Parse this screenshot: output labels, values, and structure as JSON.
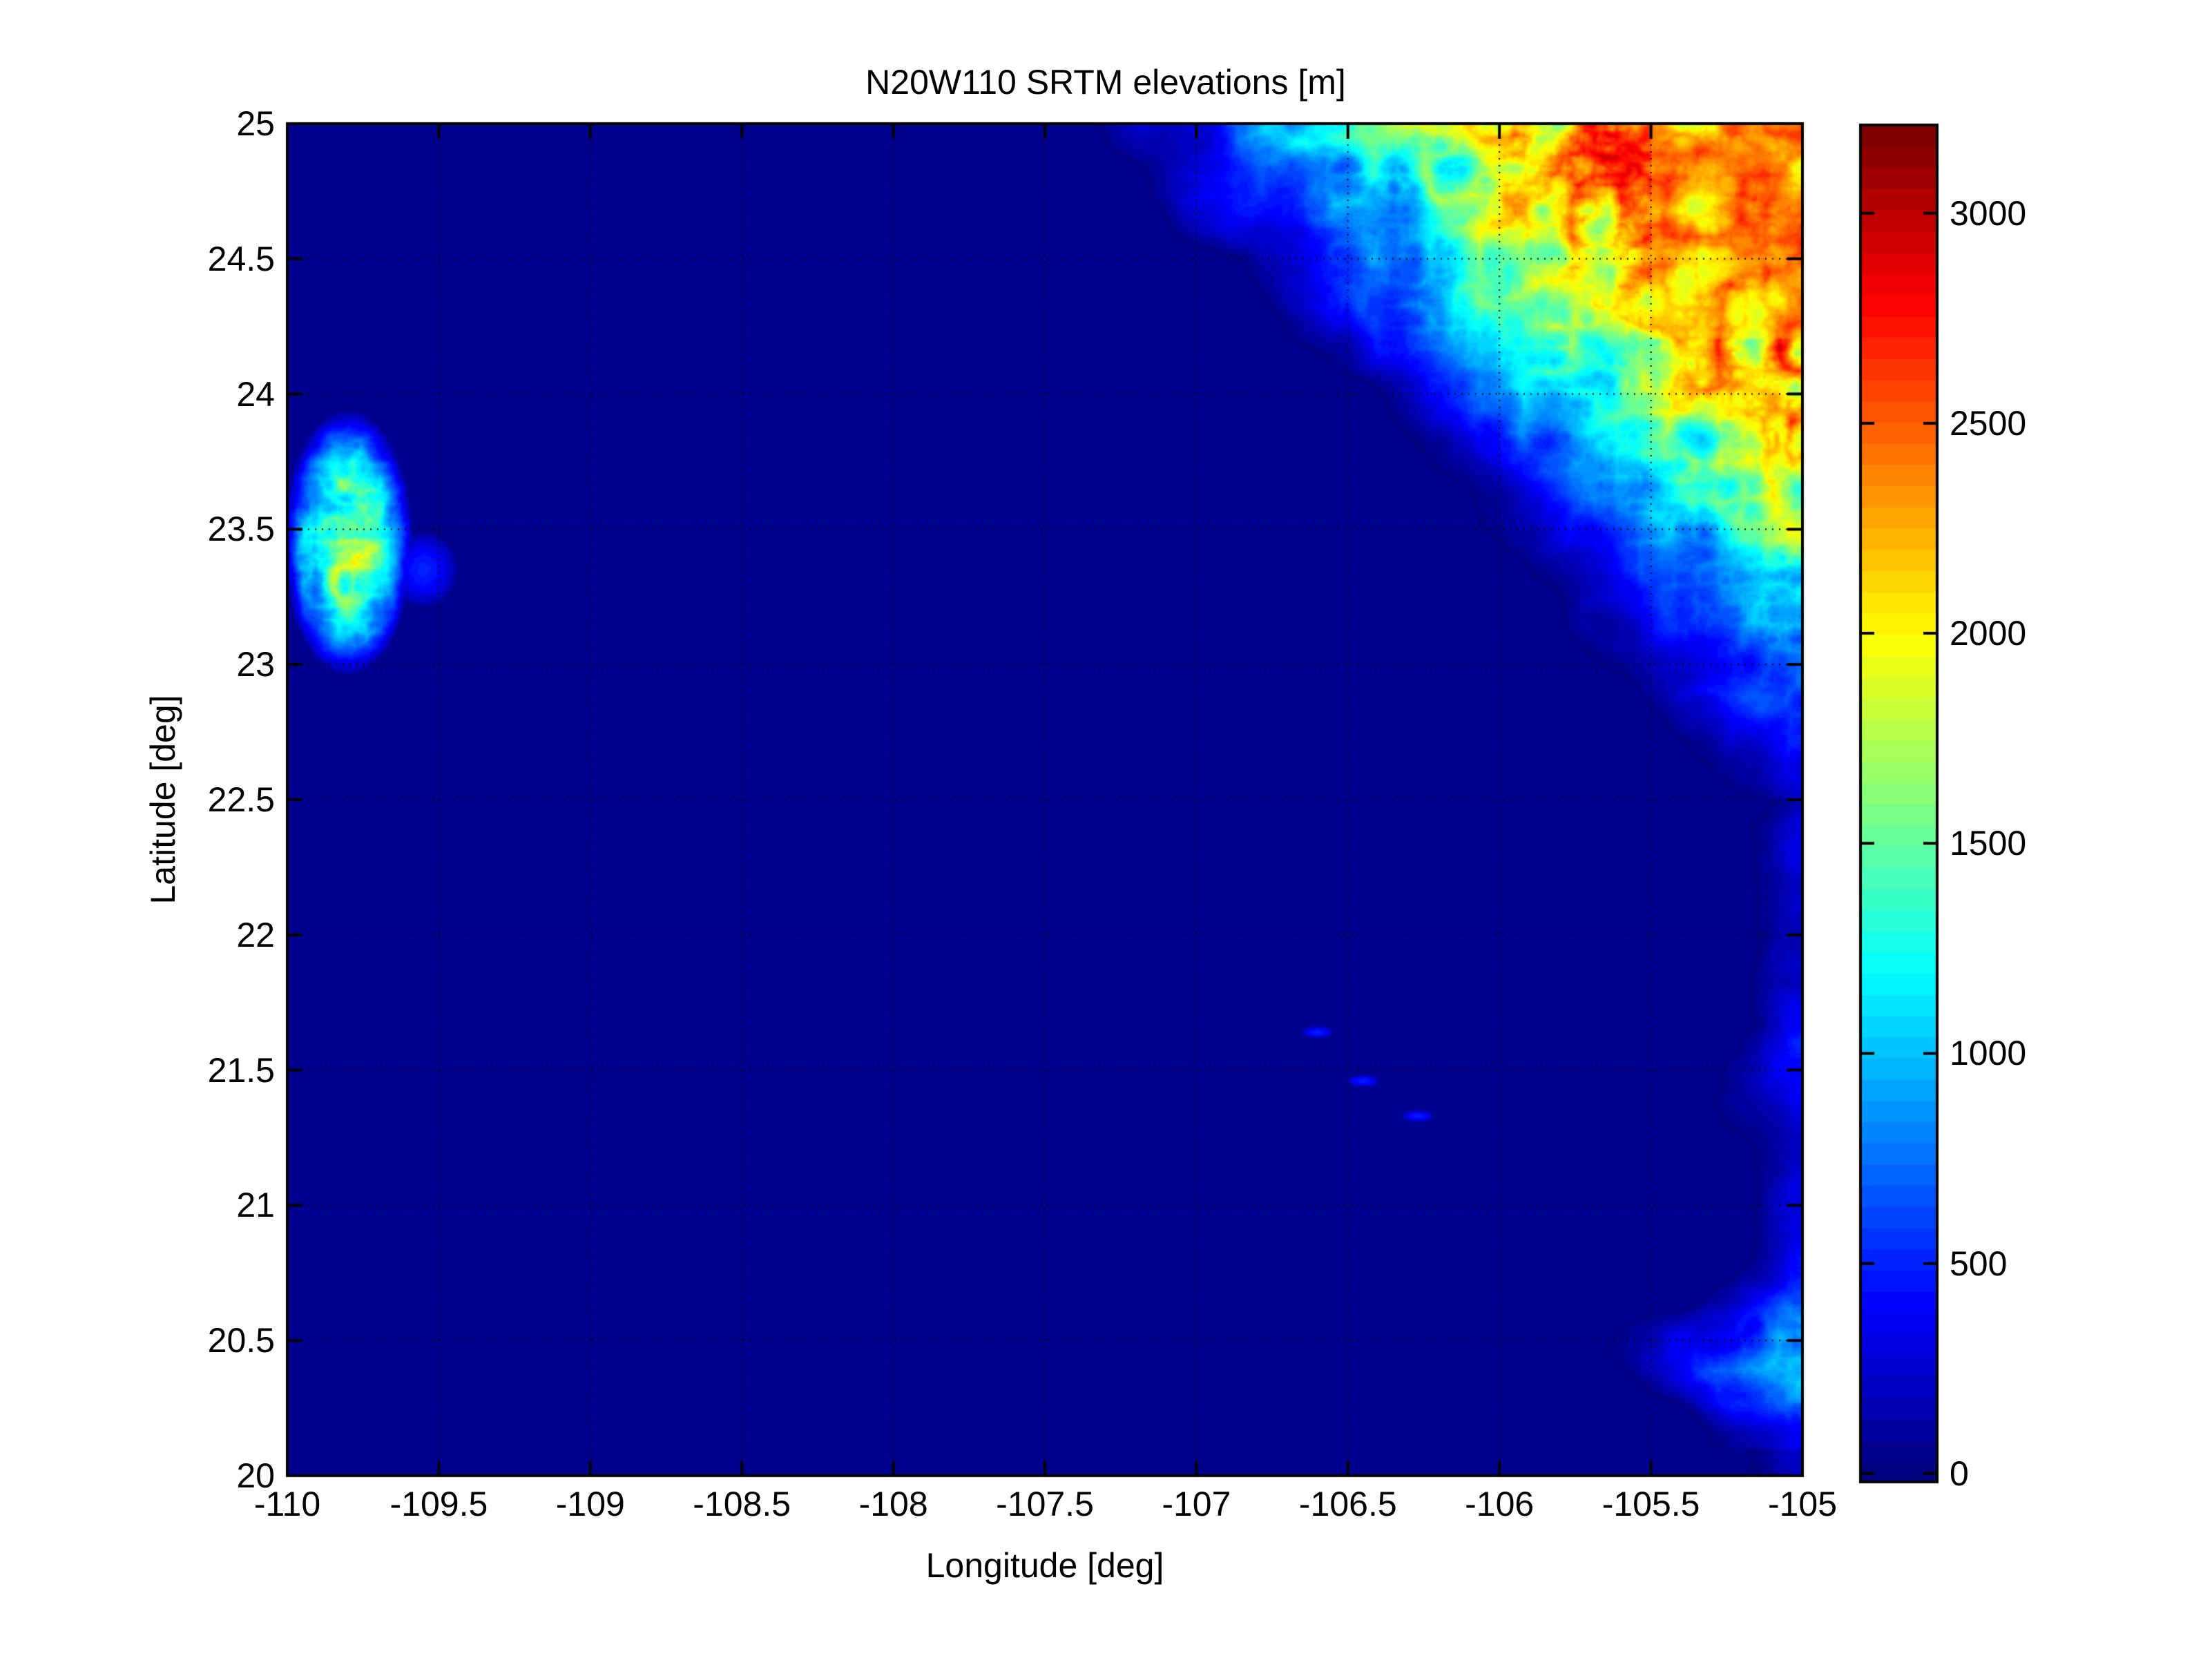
{
  "chart_data": {
    "type": "heatmap",
    "title": "N20W110 SRTM elevations [m]",
    "xlabel": "Longitude [deg]",
    "ylabel": "Latitude [deg]",
    "xlim": [
      -110,
      -105
    ],
    "ylim": [
      20,
      25
    ],
    "xticks": [
      -110,
      -109.5,
      -109,
      -108.5,
      -108,
      -107.5,
      -107,
      -106.5,
      -106,
      -105.5,
      -105
    ],
    "xtick_labels": [
      "-110",
      "-109.5",
      "-109",
      "-108.5",
      "-108",
      "-107.5",
      "-107",
      "-106.5",
      "-106",
      "-105.5",
      "-105"
    ],
    "yticks": [
      20,
      20.5,
      21,
      21.5,
      22,
      22.5,
      23,
      23.5,
      24,
      24.5,
      25
    ],
    "ytick_labels": [
      "20",
      "20.5",
      "21",
      "21.5",
      "22",
      "22.5",
      "23",
      "23.5",
      "24",
      "24.5",
      "25"
    ],
    "grid": true,
    "colormap": "jet",
    "colormap_levels": 64,
    "colorbar": {
      "clim": [
        -20,
        3210
      ],
      "ticks": [
        0,
        500,
        1000,
        1500,
        2000,
        2500,
        3000
      ],
      "tick_labels": [
        "0",
        "500",
        "1000",
        "1500",
        "2000",
        "2500",
        "3000"
      ],
      "placement": "right"
    },
    "sea_color": "#00008f"
  }
}
